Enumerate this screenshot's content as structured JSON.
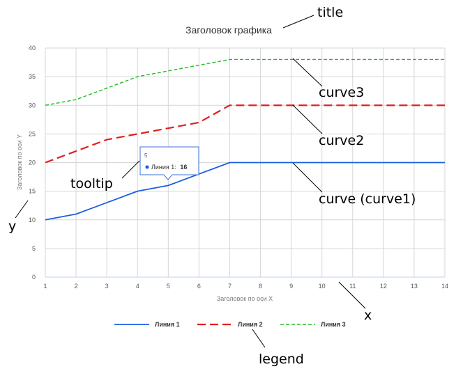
{
  "chart_data": {
    "type": "line",
    "title": "Заголовок графика",
    "xlabel": "Заголовок по оси X",
    "ylabel": "Заголовок по оси Y",
    "x": [
      1,
      2,
      3,
      4,
      5,
      6,
      7,
      8,
      9,
      10,
      11,
      12,
      13,
      14
    ],
    "xlim": [
      1,
      14
    ],
    "ylim": [
      0,
      40
    ],
    "yticks": [
      0,
      5,
      10,
      15,
      20,
      25,
      30,
      35,
      40
    ],
    "grid": true,
    "legend_position": "bottom",
    "series": [
      {
        "name": "Линия 1",
        "color": "#1a5ee0",
        "style": "solid",
        "values": [
          10,
          11,
          13,
          15,
          16,
          18,
          20,
          20,
          20,
          20,
          20,
          20,
          20,
          20
        ]
      },
      {
        "name": "Линия 2",
        "color": "#e02020",
        "style": "dashed",
        "values": [
          20,
          22,
          24,
          25,
          26,
          27,
          30,
          30,
          30,
          30,
          30,
          30,
          30,
          30
        ]
      },
      {
        "name": "Линия 3",
        "color": "#22bb22",
        "style": "dotted",
        "values": [
          30,
          31,
          33,
          35,
          36,
          37,
          38,
          38,
          38,
          38,
          38,
          38,
          38,
          38
        ]
      }
    ],
    "tooltip": {
      "header": "5",
      "series_label": "Линия 1:",
      "value": "16",
      "x": 5,
      "y": 16
    }
  },
  "annotations": {
    "title": "title",
    "curve3": "curve3",
    "curve2": "curve2",
    "curve1": "curve (curve1)",
    "tooltip": "tooltip",
    "y": "y",
    "x": "x",
    "legend": "legend"
  }
}
